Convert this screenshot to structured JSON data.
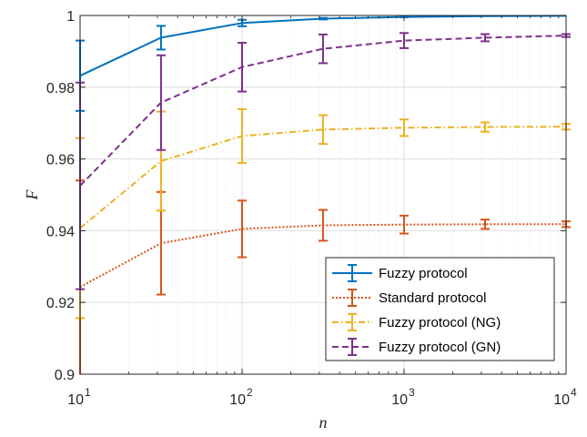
{
  "chart_data": {
    "type": "line",
    "title": "",
    "xlabel": "n",
    "ylabel": "F",
    "xscale": "log",
    "xlim": [
      10,
      10000
    ],
    "ylim": [
      0.9,
      1.0
    ],
    "grid": true,
    "legend_position": "bottom-right",
    "x_ticks": [
      {
        "base": "10",
        "exp": "1",
        "value": 10
      },
      {
        "base": "10",
        "exp": "2",
        "value": 100
      },
      {
        "base": "10",
        "exp": "3",
        "value": 1000
      },
      {
        "base": "10",
        "exp": "4",
        "value": 10000
      }
    ],
    "y_ticks": [
      {
        "label": "0.9",
        "value": 0.9
      },
      {
        "label": "0.92",
        "value": 0.92
      },
      {
        "label": "0.94",
        "value": 0.94
      },
      {
        "label": "0.96",
        "value": 0.96
      },
      {
        "label": "0.98",
        "value": 0.98
      },
      {
        "label": "1",
        "value": 1.0
      }
    ],
    "x": [
      10,
      31.6,
      100,
      316,
      1000,
      3162,
      10000
    ],
    "series": [
      {
        "name": "Fuzzy protocol",
        "color": "#0072BD",
        "dash": "solid",
        "values": [
          0.9832,
          0.9938,
          0.9979,
          0.9991,
          0.9996,
          0.9998,
          0.9999
        ],
        "errors": [
          0.0098,
          0.0033,
          0.0009,
          0.0002,
          0.0001,
          0.0,
          0.0
        ]
      },
      {
        "name": "Standard protocol",
        "color": "#D95319",
        "dash": "dotted",
        "values": [
          0.9243,
          0.9365,
          0.9405,
          0.9415,
          0.9417,
          0.9418,
          0.9418
        ],
        "errors": [
          0.0297,
          0.0143,
          0.0079,
          0.0043,
          0.0025,
          0.0013,
          0.0008
        ]
      },
      {
        "name": "Fuzzy protocol (NG)",
        "color": "#EDB120",
        "dash": "dashdot",
        "values": [
          0.9407,
          0.9594,
          0.9664,
          0.9682,
          0.9687,
          0.9689,
          0.969
        ],
        "errors": [
          0.0251,
          0.0138,
          0.0075,
          0.004,
          0.0023,
          0.0013,
          0.0008
        ]
      },
      {
        "name": "Fuzzy protocol (GN)",
        "color": "#7E2F8E",
        "dash": "dashed",
        "values": [
          0.9525,
          0.9757,
          0.9856,
          0.9907,
          0.993,
          0.9938,
          0.9944
        ],
        "errors": [
          0.0288,
          0.0132,
          0.0068,
          0.004,
          0.0021,
          0.001,
          0.0004
        ]
      }
    ]
  }
}
